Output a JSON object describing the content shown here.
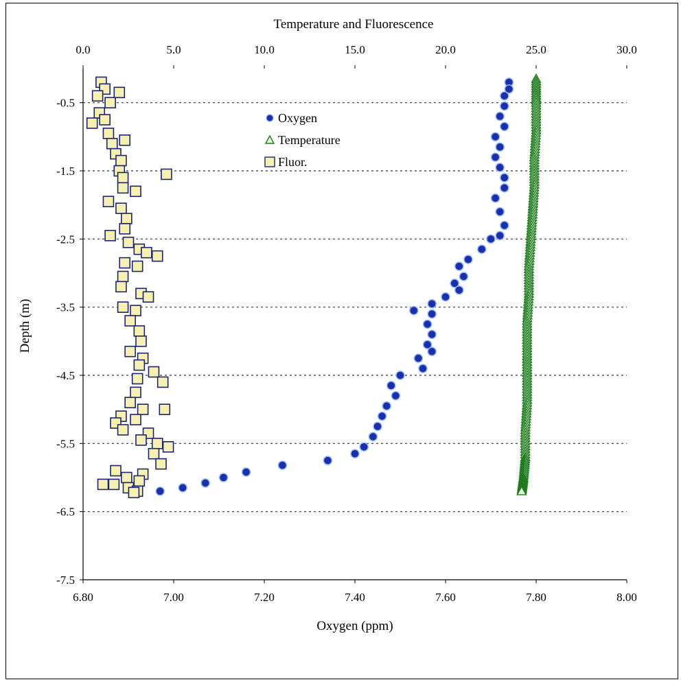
{
  "chart_data": {
    "type": "scatter",
    "title": "Temperature and Fluorescence",
    "xlabel": "Oxygen (ppm)",
    "ylabel": "Depth (m)",
    "x_bottom": {
      "label": "Oxygen (ppm)",
      "range": [
        6.8,
        8.0
      ],
      "ticks": [
        "6.80",
        "7.00",
        "7.20",
        "7.40",
        "7.60",
        "7.80",
        "8.00"
      ]
    },
    "x_top": {
      "label": "Temperature and Fluorescence",
      "range": [
        0,
        30
      ],
      "ticks": [
        "0.0",
        "5.0",
        "10.0",
        "15.0",
        "20.0",
        "25.0",
        "30.0"
      ]
    },
    "y": {
      "label": "Depth (m)",
      "range": [
        -7.5,
        0
      ],
      "ticks": [
        "-0.5",
        "-1.5",
        "-2.5",
        "-3.5",
        "-4.5",
        "-5.5",
        "-6.5",
        "-7.5"
      ]
    },
    "grid": "horizontal dashed",
    "legend": {
      "position": "top-center",
      "entries": [
        "Oxygen",
        "Temperature",
        "Fluor."
      ]
    },
    "series": [
      {
        "name": "Oxygen",
        "axis": "bottom",
        "marker": "circle",
        "color": "#1d2fa6",
        "points": [
          [
            7.74,
            -0.2
          ],
          [
            7.74,
            -0.3
          ],
          [
            7.73,
            -0.4
          ],
          [
            7.73,
            -0.55
          ],
          [
            7.72,
            -0.7
          ],
          [
            7.73,
            -0.85
          ],
          [
            7.71,
            -1.0
          ],
          [
            7.72,
            -1.15
          ],
          [
            7.71,
            -1.3
          ],
          [
            7.72,
            -1.45
          ],
          [
            7.73,
            -1.6
          ],
          [
            7.73,
            -1.75
          ],
          [
            7.71,
            -1.9
          ],
          [
            7.72,
            -2.1
          ],
          [
            7.73,
            -2.3
          ],
          [
            7.72,
            -2.45
          ],
          [
            7.7,
            -2.5
          ],
          [
            7.68,
            -2.65
          ],
          [
            7.65,
            -2.8
          ],
          [
            7.63,
            -2.9
          ],
          [
            7.64,
            -3.05
          ],
          [
            7.62,
            -3.15
          ],
          [
            7.63,
            -3.25
          ],
          [
            7.6,
            -3.35
          ],
          [
            7.57,
            -3.45
          ],
          [
            7.53,
            -3.55
          ],
          [
            7.57,
            -3.6
          ],
          [
            7.56,
            -3.75
          ],
          [
            7.57,
            -3.9
          ],
          [
            7.56,
            -4.05
          ],
          [
            7.57,
            -4.15
          ],
          [
            7.54,
            -4.25
          ],
          [
            7.55,
            -4.4
          ],
          [
            7.5,
            -4.5
          ],
          [
            7.48,
            -4.65
          ],
          [
            7.49,
            -4.8
          ],
          [
            7.47,
            -4.95
          ],
          [
            7.46,
            -5.1
          ],
          [
            7.45,
            -5.25
          ],
          [
            7.44,
            -5.4
          ],
          [
            7.42,
            -5.55
          ],
          [
            7.4,
            -5.65
          ],
          [
            7.34,
            -5.75
          ],
          [
            7.24,
            -5.82
          ],
          [
            7.16,
            -5.92
          ],
          [
            7.11,
            -6.0
          ],
          [
            7.07,
            -6.08
          ],
          [
            7.02,
            -6.15
          ],
          [
            6.97,
            -6.2
          ]
        ]
      },
      {
        "name": "Temperature",
        "axis": "top",
        "marker": "triangle",
        "color": "#1e7a1e",
        "points": [
          [
            25.0,
            -0.15
          ],
          [
            25.0,
            -0.5
          ],
          [
            25.0,
            -0.9
          ],
          [
            24.9,
            -1.3
          ],
          [
            24.9,
            -1.7
          ],
          [
            24.8,
            -2.1
          ],
          [
            24.7,
            -2.5
          ],
          [
            24.6,
            -2.9
          ],
          [
            24.6,
            -3.3
          ],
          [
            24.5,
            -3.7
          ],
          [
            24.5,
            -4.1
          ],
          [
            24.5,
            -4.5
          ],
          [
            24.5,
            -4.9
          ],
          [
            24.4,
            -5.3
          ],
          [
            24.4,
            -5.7
          ],
          [
            24.3,
            -6.0
          ],
          [
            24.2,
            -6.2
          ]
        ]
      },
      {
        "name": "Fluor.",
        "axis": "top",
        "marker": "square",
        "color": "#f6f0b3",
        "points": [
          [
            1.0,
            -0.2
          ],
          [
            1.2,
            -0.3
          ],
          [
            0.8,
            -0.4
          ],
          [
            2.0,
            -0.35
          ],
          [
            1.5,
            -0.5
          ],
          [
            0.9,
            -0.65
          ],
          [
            1.2,
            -0.75
          ],
          [
            0.5,
            -0.8
          ],
          [
            1.4,
            -0.95
          ],
          [
            1.6,
            -1.1
          ],
          [
            2.3,
            -1.05
          ],
          [
            1.8,
            -1.25
          ],
          [
            2.1,
            -1.35
          ],
          [
            2.0,
            -1.5
          ],
          [
            4.6,
            -1.55
          ],
          [
            2.2,
            -1.6
          ],
          [
            2.2,
            -1.75
          ],
          [
            2.9,
            -1.8
          ],
          [
            1.4,
            -1.95
          ],
          [
            2.1,
            -2.05
          ],
          [
            2.4,
            -2.2
          ],
          [
            2.3,
            -2.35
          ],
          [
            1.5,
            -2.45
          ],
          [
            2.5,
            -2.55
          ],
          [
            3.1,
            -2.65
          ],
          [
            3.5,
            -2.7
          ],
          [
            4.1,
            -2.75
          ],
          [
            2.3,
            -2.85
          ],
          [
            3.0,
            -2.9
          ],
          [
            2.2,
            -3.05
          ],
          [
            2.1,
            -3.2
          ],
          [
            3.2,
            -3.3
          ],
          [
            3.6,
            -3.35
          ],
          [
            2.2,
            -3.5
          ],
          [
            2.9,
            -3.55
          ],
          [
            2.6,
            -3.7
          ],
          [
            3.1,
            -3.85
          ],
          [
            3.2,
            -4.0
          ],
          [
            2.6,
            -4.15
          ],
          [
            3.3,
            -4.25
          ],
          [
            3.1,
            -4.35
          ],
          [
            3.9,
            -4.45
          ],
          [
            3.0,
            -4.55
          ],
          [
            4.4,
            -4.6
          ],
          [
            2.9,
            -4.75
          ],
          [
            2.6,
            -4.9
          ],
          [
            3.3,
            -5.0
          ],
          [
            4.5,
            -5.0
          ],
          [
            2.1,
            -5.1
          ],
          [
            2.9,
            -5.15
          ],
          [
            1.8,
            -5.2
          ],
          [
            2.2,
            -5.3
          ],
          [
            3.6,
            -5.35
          ],
          [
            3.2,
            -5.45
          ],
          [
            4.1,
            -5.5
          ],
          [
            4.7,
            -5.55
          ],
          [
            3.9,
            -5.65
          ],
          [
            4.3,
            -5.8
          ],
          [
            1.8,
            -5.9
          ],
          [
            3.3,
            -5.95
          ],
          [
            2.4,
            -6.0
          ],
          [
            3.1,
            -6.05
          ],
          [
            1.1,
            -6.1
          ],
          [
            1.7,
            -6.1
          ],
          [
            2.5,
            -6.15
          ],
          [
            3.0,
            -6.2
          ],
          [
            2.8,
            -6.22
          ]
        ]
      }
    ]
  }
}
